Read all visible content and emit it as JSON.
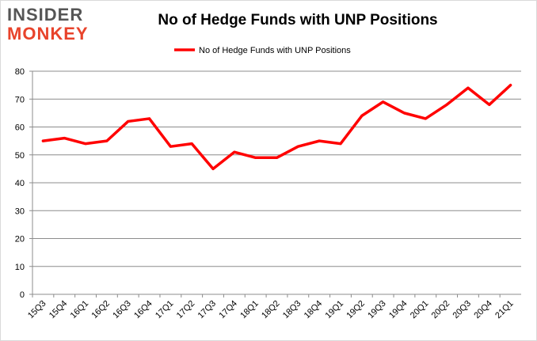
{
  "logo": {
    "line1": "INSIDER",
    "line2": "MONKEY"
  },
  "chart_data": {
    "type": "line",
    "title": "No of Hedge Funds with UNP Positions",
    "categories": [
      "15Q3",
      "15Q4",
      "16Q1",
      "16Q2",
      "16Q3",
      "16Q4",
      "17Q1",
      "17Q2",
      "17Q3",
      "17Q4",
      "18Q1",
      "18Q2",
      "18Q3",
      "18Q4",
      "19Q1",
      "19Q2",
      "19Q3",
      "19Q4",
      "20Q1",
      "20Q2",
      "20Q3",
      "20Q4",
      "21Q1"
    ],
    "series": [
      {
        "name": "No of Hedge Funds with UNP Positions",
        "color": "#ff0000",
        "values": [
          55,
          56,
          54,
          55,
          62,
          63,
          53,
          54,
          45,
          51,
          49,
          49,
          53,
          55,
          54,
          64,
          69,
          65,
          63,
          68,
          74,
          68,
          75
        ]
      }
    ],
    "ylim": [
      0,
      80
    ],
    "yticks": [
      0,
      10,
      20,
      30,
      40,
      50,
      60,
      70,
      80
    ],
    "grid": true,
    "legend": "top-center",
    "xlabel": "",
    "ylabel": ""
  }
}
